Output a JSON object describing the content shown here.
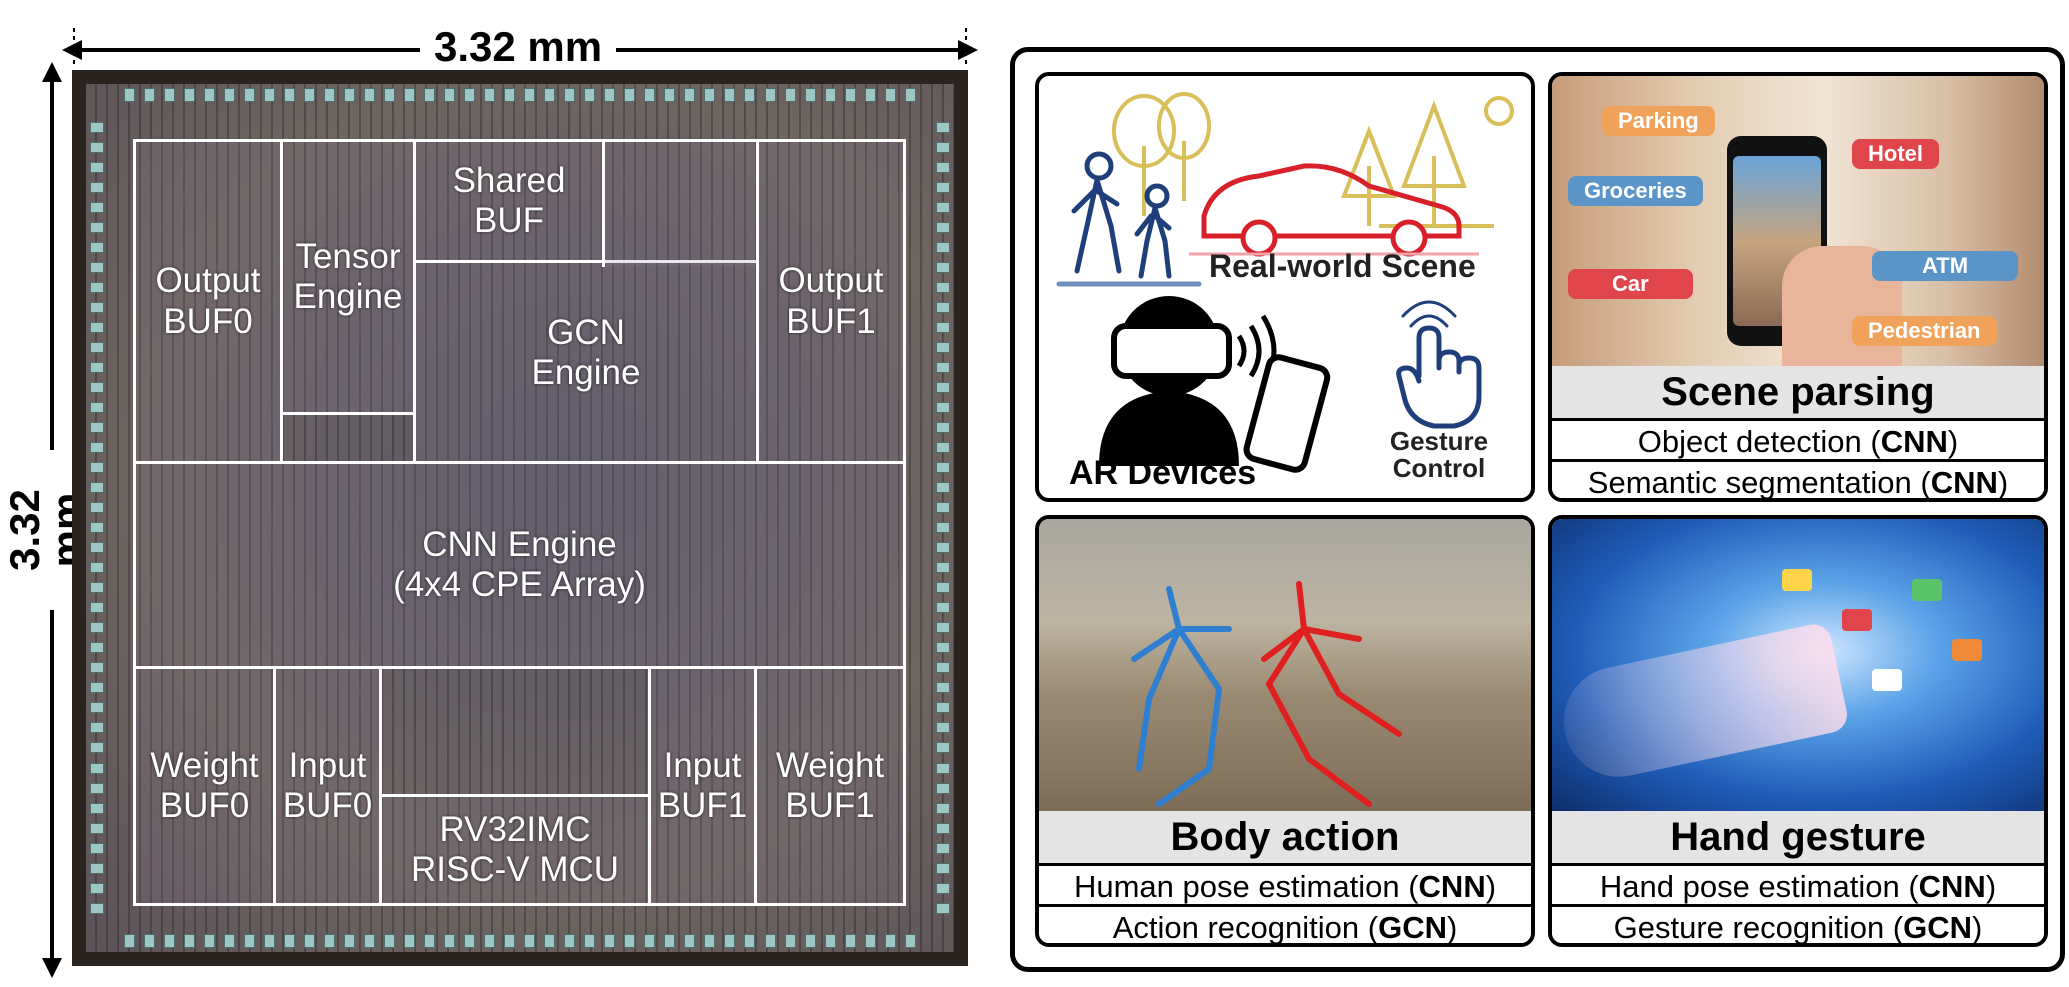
{
  "die": {
    "width_label": "3.32 mm",
    "height_label": "3.32 mm",
    "blocks": {
      "output_buf0": [
        "Output",
        "BUF0"
      ],
      "tensor_engine": [
        "Tensor",
        "Engine"
      ],
      "shared_buf": [
        "Shared",
        "BUF"
      ],
      "gcn_engine": [
        "GCN",
        "Engine"
      ],
      "output_buf1": [
        "Output",
        "BUF1"
      ],
      "cnn_engine": [
        "CNN Engine",
        "(4x4 CPE Array)"
      ],
      "weight_buf0": [
        "Weight",
        "BUF0"
      ],
      "input_buf0": [
        "Input",
        "BUF0"
      ],
      "mcu": [
        "RV32IMC",
        "RISC-V MCU"
      ],
      "input_buf1": [
        "Input",
        "BUF1"
      ],
      "weight_buf1": [
        "Weight",
        "BUF1"
      ]
    }
  },
  "applications": {
    "overview": {
      "real_world_label": "Real-world Scene",
      "ar_label": "AR Devices",
      "gesture_label": [
        "Gesture",
        "Control"
      ]
    },
    "scene_parsing": {
      "title": "Scene parsing",
      "tags": [
        "Parking",
        "Hotel",
        "Groceries",
        "Car",
        "ATM",
        "Pedestrian"
      ],
      "tasks": [
        {
          "name": "Object detection (",
          "model": "CNN",
          "end": ")"
        },
        {
          "name": "Semantic segmentation (",
          "model": "CNN",
          "end": ")"
        }
      ]
    },
    "body_action": {
      "title": "Body action",
      "tasks": [
        {
          "name": "Human pose estimation (",
          "model": "CNN",
          "end": ")"
        },
        {
          "name": "Action recognition (",
          "model": "GCN",
          "end": ")"
        }
      ]
    },
    "hand_gesture": {
      "title": "Hand gesture",
      "tasks": [
        {
          "name": "Hand pose estimation (",
          "model": "CNN",
          "end": ")"
        },
        {
          "name": "Gesture recognition (",
          "model": "GCN",
          "end": ")"
        }
      ]
    }
  },
  "colors": {
    "tag_orange": "#f0a15a",
    "tag_red": "#e0454c",
    "tag_blue": "#5b95c8",
    "icon_navy": "#1f3f7a",
    "icon_red": "#d8202a",
    "tree_gold": "#d9bf5a",
    "skeleton_blue": "#2f7fd0",
    "skeleton_red": "#e02020"
  }
}
